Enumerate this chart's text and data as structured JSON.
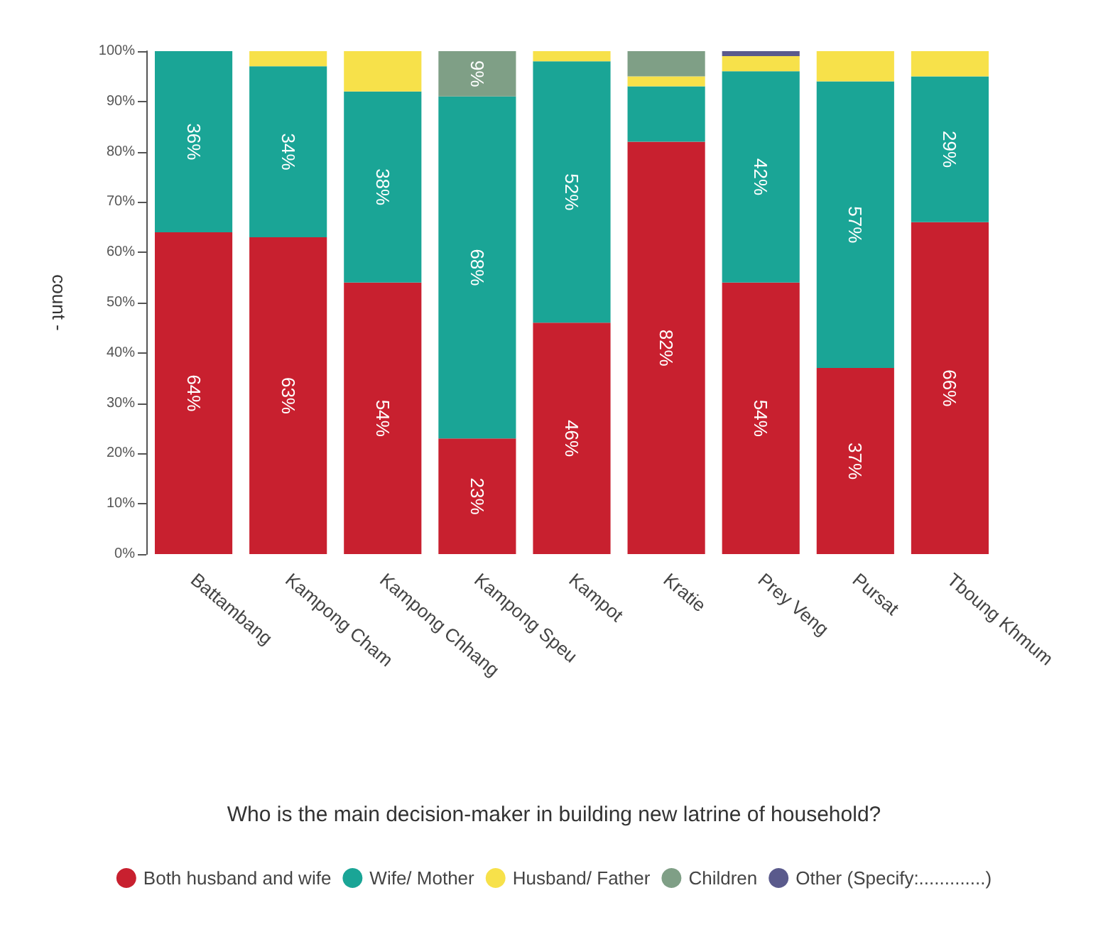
{
  "chart_data": {
    "type": "bar",
    "stacked": true,
    "ylabel": "count -",
    "legend_title": "Who is the main decision-maker in building new latrine of household?",
    "categories": [
      "Battambang",
      "Kampong Cham",
      "Kampong Chhang",
      "Kampong Speu",
      "Kampot",
      "Kratie",
      "Prey Veng",
      "Pursat",
      "Tboung Khmum"
    ],
    "series": [
      {
        "name": "Both husband and wife",
        "color": "#c8202f",
        "values": [
          64,
          63,
          54,
          23,
          46,
          82,
          54,
          37,
          66
        ],
        "value_labels": [
          "64%",
          "63%",
          "54%",
          "23%",
          "46%",
          "82%",
          "54%",
          "37%",
          "66%"
        ]
      },
      {
        "name": "Wife/ Mother",
        "color": "#1aa596",
        "values": [
          36,
          34,
          38,
          68,
          52,
          11,
          42,
          57,
          29
        ],
        "value_labels": [
          "36%",
          "34%",
          "38%",
          "68%",
          "52%",
          null,
          "42%",
          "57%",
          "29%"
        ]
      },
      {
        "name": "Husband/ Father",
        "color": "#f7e14a",
        "values": [
          0,
          3,
          8,
          0,
          2,
          2,
          3,
          6,
          5
        ]
      },
      {
        "name": "Children",
        "color": "#7f9f86",
        "values": [
          0,
          0,
          0,
          9,
          0,
          5,
          0,
          0,
          0
        ],
        "value_labels": [
          null,
          null,
          null,
          "9%",
          null,
          null,
          null,
          null,
          null
        ]
      },
      {
        "name": "Other (Specify:.............)",
        "color": "#5a5a8c",
        "values": [
          0,
          0,
          0,
          0,
          0,
          0,
          1,
          0,
          0
        ]
      }
    ],
    "ylim": [
      0,
      100
    ],
    "yticks": [
      {
        "value": 0,
        "label": "0%"
      },
      {
        "value": 10,
        "label": "10%"
      },
      {
        "value": 20,
        "label": "20%"
      },
      {
        "value": 30,
        "label": "30%"
      },
      {
        "value": 40,
        "label": "40%"
      },
      {
        "value": 50,
        "label": "50%"
      },
      {
        "value": 60,
        "label": "60%"
      },
      {
        "value": 70,
        "label": "70%"
      },
      {
        "value": 80,
        "label": "80%"
      },
      {
        "value": 90,
        "label": "90%"
      },
      {
        "value": 100,
        "label": "100%"
      }
    ],
    "grid": false,
    "legend": "bottom"
  }
}
